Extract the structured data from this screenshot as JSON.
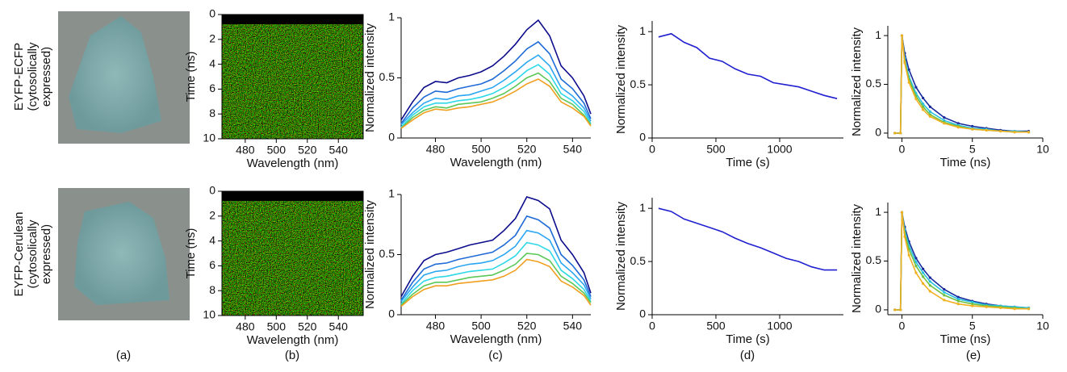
{
  "row_labels": [
    [
      "EYFP-ECFP",
      "(cytosolically",
      "expressed)"
    ],
    [
      "EYFP-Cerulean",
      "(cytosolically",
      "expressed)"
    ]
  ],
  "panel_labels": [
    "(a)",
    "(b)",
    "(c)",
    "(d)",
    "(e)"
  ],
  "chart_data": [
    {
      "type": "heatmap",
      "xlabel": "Wavelength (nm)",
      "ylabel": "Time (ns)",
      "xlim": [
        465,
        556
      ],
      "xticks": [
        480,
        500,
        520,
        540
      ],
      "ylim": [
        10,
        0
      ],
      "yticks": [
        0,
        2,
        4,
        6,
        8,
        10
      ]
    },
    {
      "type": "line",
      "xlabel": "Wavelength (nm)",
      "ylabel": "Normalized intensity",
      "xlim": [
        465,
        548
      ],
      "xticks": [
        480,
        500,
        520,
        540
      ],
      "ylim": [
        0,
        1
      ],
      "yticks": [
        0,
        0.5,
        1
      ],
      "x": [
        465,
        470,
        475,
        480,
        485,
        490,
        495,
        500,
        505,
        510,
        515,
        520,
        525,
        530,
        535,
        540,
        545,
        548
      ],
      "series": [
        {
          "color": "#0c0c8c",
          "values": [
            0.15,
            0.3,
            0.42,
            0.47,
            0.46,
            0.5,
            0.52,
            0.55,
            0.6,
            0.68,
            0.78,
            0.9,
            0.98,
            0.85,
            0.6,
            0.5,
            0.35,
            0.2
          ]
        },
        {
          "color": "#1e6ad6",
          "values": [
            0.12,
            0.25,
            0.34,
            0.39,
            0.38,
            0.41,
            0.43,
            0.45,
            0.49,
            0.56,
            0.64,
            0.74,
            0.8,
            0.7,
            0.49,
            0.41,
            0.29,
            0.16
          ]
        },
        {
          "color": "#2aa6f2",
          "values": [
            0.11,
            0.21,
            0.29,
            0.33,
            0.32,
            0.35,
            0.36,
            0.39,
            0.42,
            0.48,
            0.55,
            0.63,
            0.69,
            0.6,
            0.42,
            0.35,
            0.25,
            0.14
          ]
        },
        {
          "color": "#2ed8e6",
          "values": [
            0.09,
            0.19,
            0.26,
            0.29,
            0.29,
            0.31,
            0.32,
            0.34,
            0.37,
            0.42,
            0.48,
            0.56,
            0.61,
            0.53,
            0.37,
            0.31,
            0.22,
            0.12
          ]
        },
        {
          "color": "#5cc85a",
          "values": [
            0.08,
            0.17,
            0.23,
            0.26,
            0.25,
            0.28,
            0.29,
            0.3,
            0.33,
            0.37,
            0.43,
            0.5,
            0.54,
            0.47,
            0.33,
            0.28,
            0.19,
            0.11
          ]
        },
        {
          "color": "#f0a020",
          "values": [
            0.08,
            0.15,
            0.21,
            0.24,
            0.23,
            0.25,
            0.26,
            0.28,
            0.3,
            0.34,
            0.39,
            0.45,
            0.49,
            0.43,
            0.3,
            0.25,
            0.18,
            0.1
          ]
        }
      ]
    },
    {
      "type": "line",
      "xlabel": "Time (s)",
      "ylabel": "Normalized intensity",
      "xlim": [
        0,
        1500
      ],
      "xticks": [
        0,
        500,
        1000
      ],
      "ylim": [
        0,
        1.1
      ],
      "yticks": [
        0,
        0.5,
        1
      ],
      "x": [
        50,
        150,
        250,
        350,
        450,
        550,
        650,
        750,
        850,
        950,
        1050,
        1150,
        1250,
        1350,
        1450
      ],
      "series": [
        {
          "color": "#2020d0",
          "values": [
            0.95,
            0.98,
            0.9,
            0.85,
            0.75,
            0.72,
            0.65,
            0.6,
            0.58,
            0.52,
            0.5,
            0.48,
            0.44,
            0.4,
            0.37
          ]
        }
      ]
    },
    {
      "type": "line",
      "markers": true,
      "xlabel": "Time (ns)",
      "ylabel": "Normalized intensity",
      "xlim": [
        -1,
        10
      ],
      "xticks": [
        0,
        5,
        10
      ],
      "ylim": [
        -0.05,
        1.1
      ],
      "yticks": [
        0,
        0.5,
        1
      ],
      "x": [
        -0.5,
        -0.1,
        0,
        0.2,
        0.5,
        1,
        1.5,
        2,
        3,
        4,
        5,
        6,
        7,
        8,
        9
      ],
      "series": [
        {
          "color": "#1a2a9c",
          "values": [
            0,
            0,
            1,
            0.82,
            0.65,
            0.47,
            0.36,
            0.27,
            0.16,
            0.1,
            0.07,
            0.05,
            0.03,
            0.02,
            0.02
          ]
        },
        {
          "color": "#28c0e0",
          "values": [
            0,
            0,
            1,
            0.77,
            0.58,
            0.41,
            0.3,
            0.22,
            0.13,
            0.08,
            0.05,
            0.04,
            0.02,
            0.02,
            0.01
          ]
        },
        {
          "color": "#70c040",
          "values": [
            0,
            0,
            1,
            0.74,
            0.55,
            0.38,
            0.27,
            0.19,
            0.11,
            0.07,
            0.04,
            0.03,
            0.02,
            0.01,
            0.01
          ]
        },
        {
          "color": "#f0b020",
          "values": [
            0,
            0,
            1,
            0.72,
            0.52,
            0.35,
            0.24,
            0.17,
            0.1,
            0.06,
            0.04,
            0.03,
            0.02,
            0.01,
            0.01
          ]
        }
      ]
    },
    {
      "type": "heatmap",
      "xlabel": "Wavelength (nm)",
      "ylabel": "Time (ns)",
      "xlim": [
        465,
        556
      ],
      "xticks": [
        480,
        500,
        520,
        540
      ],
      "ylim": [
        10,
        0
      ],
      "yticks": [
        0,
        2,
        4,
        6,
        8,
        10
      ]
    },
    {
      "type": "line",
      "xlabel": "Wavelength (nm)",
      "ylabel": "Normalized intensity",
      "xlim": [
        465,
        548
      ],
      "xticks": [
        480,
        500,
        520,
        540
      ],
      "ylim": [
        0,
        1
      ],
      "yticks": [
        0,
        0.5,
        1
      ],
      "x": [
        465,
        470,
        475,
        480,
        485,
        490,
        495,
        500,
        505,
        510,
        515,
        520,
        525,
        530,
        535,
        540,
        545,
        548
      ],
      "series": [
        {
          "color": "#0c0c8c",
          "values": [
            0.15,
            0.32,
            0.45,
            0.5,
            0.52,
            0.55,
            0.58,
            0.6,
            0.62,
            0.7,
            0.8,
            0.98,
            0.95,
            0.88,
            0.62,
            0.5,
            0.35,
            0.18
          ]
        },
        {
          "color": "#1e6ad6",
          "values": [
            0.12,
            0.27,
            0.38,
            0.42,
            0.43,
            0.46,
            0.48,
            0.5,
            0.52,
            0.58,
            0.66,
            0.82,
            0.79,
            0.72,
            0.5,
            0.41,
            0.29,
            0.15
          ]
        },
        {
          "color": "#2aa6f2",
          "values": [
            0.11,
            0.23,
            0.33,
            0.36,
            0.37,
            0.4,
            0.42,
            0.43,
            0.45,
            0.5,
            0.57,
            0.7,
            0.68,
            0.62,
            0.43,
            0.35,
            0.25,
            0.13
          ]
        },
        {
          "color": "#2ed8e6",
          "values": [
            0.09,
            0.2,
            0.28,
            0.31,
            0.32,
            0.34,
            0.36,
            0.37,
            0.38,
            0.43,
            0.49,
            0.6,
            0.58,
            0.53,
            0.37,
            0.3,
            0.21,
            0.11
          ]
        },
        {
          "color": "#5cc85a",
          "values": [
            0.08,
            0.17,
            0.24,
            0.27,
            0.27,
            0.29,
            0.31,
            0.32,
            0.33,
            0.37,
            0.42,
            0.51,
            0.5,
            0.45,
            0.32,
            0.26,
            0.18,
            0.1
          ]
        },
        {
          "color": "#f0a020",
          "values": [
            0.07,
            0.15,
            0.21,
            0.24,
            0.24,
            0.26,
            0.27,
            0.28,
            0.29,
            0.32,
            0.37,
            0.46,
            0.44,
            0.4,
            0.28,
            0.23,
            0.16,
            0.08
          ]
        }
      ]
    },
    {
      "type": "line",
      "xlabel": "Time (s)",
      "ylabel": "Normalized intensity",
      "xlim": [
        0,
        1500
      ],
      "xticks": [
        0,
        500,
        1000
      ],
      "ylim": [
        0,
        1.1
      ],
      "yticks": [
        0,
        0.5,
        1
      ],
      "x": [
        50,
        150,
        250,
        350,
        450,
        550,
        650,
        750,
        850,
        950,
        1050,
        1150,
        1250,
        1350,
        1450
      ],
      "series": [
        {
          "color": "#2020d0",
          "values": [
            1,
            0.97,
            0.9,
            0.86,
            0.82,
            0.78,
            0.72,
            0.67,
            0.63,
            0.58,
            0.53,
            0.5,
            0.45,
            0.42,
            0.42
          ]
        }
      ]
    },
    {
      "type": "line",
      "markers": true,
      "xlabel": "Time (ns)",
      "ylabel": "Normalized intensity",
      "xlim": [
        -1,
        10
      ],
      "xticks": [
        0,
        5,
        10
      ],
      "ylim": [
        -0.05,
        1.1
      ],
      "yticks": [
        0,
        0.5,
        1
      ],
      "x": [
        -0.5,
        -0.1,
        0,
        0.2,
        0.5,
        1,
        1.5,
        2,
        3,
        4,
        5,
        6,
        7,
        8,
        9
      ],
      "series": [
        {
          "color": "#1a2a9c",
          "values": [
            0,
            0,
            1,
            0.85,
            0.7,
            0.53,
            0.42,
            0.33,
            0.21,
            0.13,
            0.09,
            0.06,
            0.04,
            0.03,
            0.02
          ]
        },
        {
          "color": "#28c0e0",
          "values": [
            0,
            0,
            1,
            0.82,
            0.66,
            0.49,
            0.38,
            0.29,
            0.18,
            0.11,
            0.08,
            0.05,
            0.04,
            0.03,
            0.02
          ]
        },
        {
          "color": "#70c040",
          "values": [
            0,
            0,
            1,
            0.79,
            0.62,
            0.45,
            0.34,
            0.25,
            0.15,
            0.09,
            0.06,
            0.04,
            0.03,
            0.02,
            0.01
          ]
        },
        {
          "color": "#f0b020",
          "values": [
            0,
            0,
            1,
            0.75,
            0.56,
            0.38,
            0.27,
            0.19,
            0.1,
            0.06,
            0.04,
            0.03,
            0.02,
            0.01,
            0.01
          ]
        }
      ]
    }
  ]
}
